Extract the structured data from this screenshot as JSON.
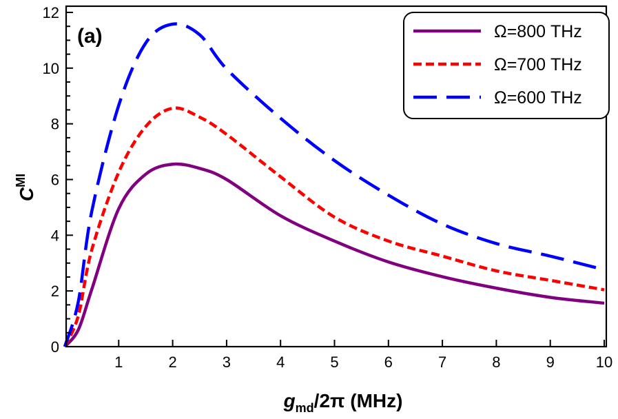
{
  "chart_data": {
    "type": "line",
    "panel_label": "(a)",
    "xlabel": {
      "main": "g",
      "sub": "md",
      "rest": "/2π (MHz)"
    },
    "ylabel": {
      "main": "C",
      "sup": "MI"
    },
    "xlim": [
      0,
      10
    ],
    "ylim": [
      0,
      12
    ],
    "xticks": [
      1,
      2,
      3,
      4,
      5,
      6,
      7,
      8,
      9,
      10
    ],
    "yticks": [
      0,
      2,
      4,
      6,
      8,
      10,
      12
    ],
    "grid": false,
    "legend_position": "top-right",
    "x": [
      0,
      0.25,
      0.5,
      1,
      1.5,
      2,
      2.5,
      3,
      4,
      5,
      6,
      7,
      8,
      9,
      10
    ],
    "series": [
      {
        "name": "Ω=800 THz",
        "color": "#800080",
        "dash": "solid",
        "values": [
          0,
          0.6,
          2.05,
          4.95,
          6.19,
          6.55,
          6.4,
          6.0,
          4.7,
          3.79,
          3.04,
          2.51,
          2.1,
          1.77,
          1.56
        ]
      },
      {
        "name": "Ω=700 THz",
        "color": "#ff0000",
        "dash": "short-dash",
        "values": [
          0,
          1.1,
          3.47,
          6.26,
          7.9,
          8.56,
          8.24,
          7.62,
          6.1,
          4.65,
          3.79,
          3.25,
          2.72,
          2.38,
          2.04
        ]
      },
      {
        "name": "Ω=600 THz",
        "color": "#0000ff",
        "dash": "long-dash",
        "values": [
          0,
          1.6,
          4.85,
          8.66,
          10.9,
          11.58,
          11.2,
          9.97,
          8.2,
          6.68,
          5.44,
          4.4,
          3.7,
          3.25,
          2.76
        ]
      }
    ]
  }
}
